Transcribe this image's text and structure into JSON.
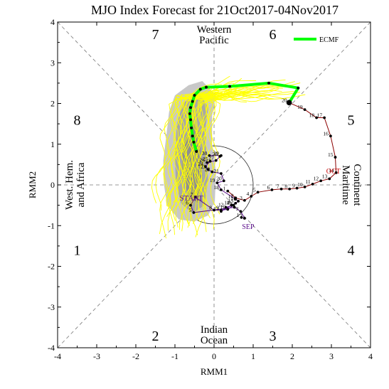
{
  "chart_data": {
    "type": "line",
    "title": "MJO Index Forecast for 21Oct2017-04Nov2017",
    "xlabel": "RMM1",
    "ylabel": "RMM2",
    "xlim": [
      -4,
      4
    ],
    "ylim": [
      -4,
      4
    ],
    "xticks": [
      "-4",
      "-3",
      "-2",
      "-1",
      "0",
      "1",
      "2",
      "3",
      "4"
    ],
    "yticks": [
      "-4",
      "-3",
      "-2",
      "-1",
      "0",
      "1",
      "2",
      "3",
      "4"
    ],
    "phases": [
      {
        "label": "1",
        "x": -3.5,
        "y": -1.6
      },
      {
        "label": "2",
        "x": -1.5,
        "y": -3.7
      },
      {
        "label": "3",
        "x": 1.5,
        "y": -3.7
      },
      {
        "label": "4",
        "x": 3.5,
        "y": -1.6
      },
      {
        "label": "5",
        "x": 3.5,
        "y": 1.6
      },
      {
        "label": "6",
        "x": 1.5,
        "y": 3.7
      },
      {
        "label": "7",
        "x": -1.5,
        "y": 3.7
      },
      {
        "label": "8",
        "x": -3.5,
        "y": 1.6
      }
    ],
    "regions": {
      "top": [
        "Western",
        "Pacific"
      ],
      "bottom": [
        "Indian",
        "Ocean"
      ],
      "left": [
        "West. Hem.",
        "and Africa"
      ],
      "right": [
        "Maritime",
        "Continent"
      ]
    },
    "legend": {
      "label": "ECMF",
      "color": "#00ff00",
      "position": "top-right"
    },
    "unit_circle_radius": 1,
    "colors": {
      "observed": "#8b0000",
      "ensemble": "#ffff00",
      "spread": "#a8a8a8",
      "forecast": "#00ff00",
      "sep_label": "#5b0f8b",
      "oct_label": "#cc0000"
    },
    "month_labels": [
      {
        "label": "SEP",
        "x": 0.87,
        "y": -1.08,
        "color": "#5b0f8b"
      },
      {
        "label": "OCT",
        "x": 3.05,
        "y": 0.28,
        "color": "#cc0000"
      },
      {
        "label": "START",
        "x": -0.58,
        "y": -0.38,
        "color": "#5b0f8b"
      }
    ],
    "sep_path": {
      "days": [
        "1",
        "2",
        "3",
        "4",
        "5",
        "6",
        "7",
        "8",
        "9",
        "10",
        "11",
        "12",
        "13",
        "14",
        "15",
        "16",
        "17",
        "18",
        "19",
        "20",
        "21",
        "22",
        "23",
        "24",
        "25",
        "26",
        "27",
        "28",
        "29",
        "30"
      ],
      "x": [
        0.7,
        0.78,
        0.68,
        0.52,
        -0.52,
        -0.6,
        -0.48,
        0.0,
        0.18,
        0.35,
        0.5,
        0.3,
        0.18,
        0.45,
        0.55,
        0.62,
        0.55,
        0.18,
        0.08,
        0.25,
        0.18,
        -0.05,
        -0.15,
        -0.22,
        -0.1,
        -0.18,
        0.05,
        0.15,
        0.18,
        -0.12
      ],
      "y": [
        -0.8,
        -0.82,
        -0.65,
        -0.55,
        -0.68,
        -0.5,
        -0.3,
        -0.62,
        -0.62,
        -0.6,
        -0.5,
        -0.55,
        -0.65,
        -0.5,
        -0.45,
        -0.4,
        -0.35,
        -0.12,
        0.05,
        0.1,
        0.28,
        0.32,
        0.38,
        0.45,
        0.58,
        0.55,
        0.6,
        0.7,
        0.72,
        0.72
      ]
    },
    "oct_path": {
      "days": [
        "1",
        "2",
        "3",
        "4",
        "5",
        "6",
        "7",
        "8",
        "9",
        "10",
        "11",
        "12",
        "13",
        "14",
        "15",
        "16",
        "17",
        "18",
        "19",
        "20"
      ],
      "x": [
        0.35,
        0.55,
        0.78,
        0.95,
        1.12,
        1.48,
        1.72,
        1.93,
        2.12,
        2.32,
        2.52,
        2.73,
        2.95,
        3.12,
        3.1,
        2.98,
        2.82,
        2.62,
        2.32,
        1.92
      ],
      "y": [
        -0.15,
        -0.32,
        -0.38,
        -0.28,
        -0.18,
        -0.12,
        -0.1,
        -0.1,
        -0.08,
        -0.05,
        0.02,
        0.1,
        0.15,
        0.3,
        0.68,
        1.2,
        1.65,
        1.65,
        1.85,
        2.02
      ]
    },
    "forecast_series": {
      "name": "ECMF",
      "x": [
        1.92,
        2.15,
        1.4,
        0.4,
        -0.2,
        -0.35,
        -0.5,
        -0.55,
        -0.6,
        -0.62,
        -0.6,
        -0.58,
        -0.55,
        -0.52,
        -0.45
      ],
      "y": [
        2.02,
        2.38,
        2.5,
        2.42,
        2.4,
        2.35,
        2.2,
        2.05,
        1.9,
        1.75,
        1.6,
        1.4,
        1.2,
        1.05,
        0.82
      ]
    }
  }
}
